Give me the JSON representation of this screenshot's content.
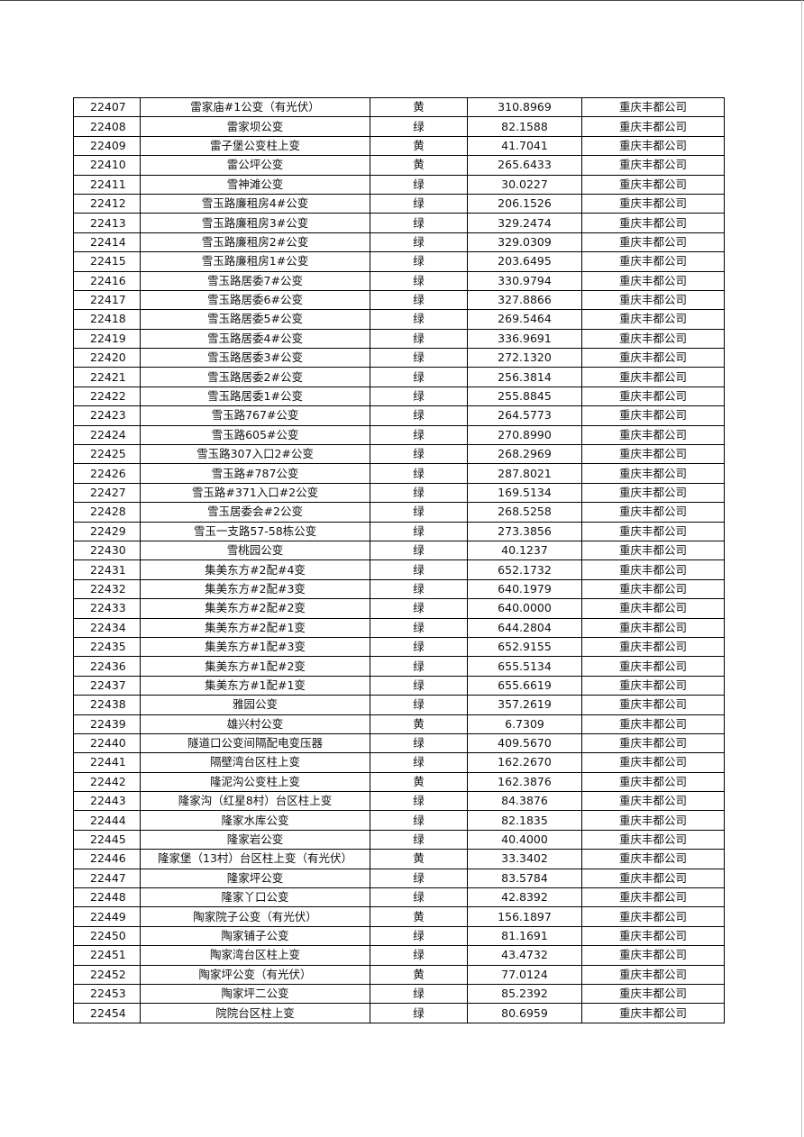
{
  "table": {
    "rows": [
      [
        "22407",
        "雷家庙#1公变（有光伏）",
        "黄",
        "310.8969",
        "重庆丰都公司"
      ],
      [
        "22408",
        "雷家坝公变",
        "绿",
        "82.1588",
        "重庆丰都公司"
      ],
      [
        "22409",
        "雷子堡公变柱上变",
        "黄",
        "41.7041",
        "重庆丰都公司"
      ],
      [
        "22410",
        "雷公坪公变",
        "黄",
        "265.6433",
        "重庆丰都公司"
      ],
      [
        "22411",
        "雪神滩公变",
        "绿",
        "30.0227",
        "重庆丰都公司"
      ],
      [
        "22412",
        "雪玉路廉租房4#公变",
        "绿",
        "206.1526",
        "重庆丰都公司"
      ],
      [
        "22413",
        "雪玉路廉租房3#公变",
        "绿",
        "329.2474",
        "重庆丰都公司"
      ],
      [
        "22414",
        "雪玉路廉租房2#公变",
        "绿",
        "329.0309",
        "重庆丰都公司"
      ],
      [
        "22415",
        "雪玉路廉租房1#公变",
        "绿",
        "203.6495",
        "重庆丰都公司"
      ],
      [
        "22416",
        "雪玉路居委7#公变",
        "绿",
        "330.9794",
        "重庆丰都公司"
      ],
      [
        "22417",
        "雪玉路居委6#公变",
        "绿",
        "327.8866",
        "重庆丰都公司"
      ],
      [
        "22418",
        "雪玉路居委5#公变",
        "绿",
        "269.5464",
        "重庆丰都公司"
      ],
      [
        "22419",
        "雪玉路居委4#公变",
        "绿",
        "336.9691",
        "重庆丰都公司"
      ],
      [
        "22420",
        "雪玉路居委3#公变",
        "绿",
        "272.1320",
        "重庆丰都公司"
      ],
      [
        "22421",
        "雪玉路居委2#公变",
        "绿",
        "256.3814",
        "重庆丰都公司"
      ],
      [
        "22422",
        "雪玉路居委1#公变",
        "绿",
        "255.8845",
        "重庆丰都公司"
      ],
      [
        "22423",
        "雪玉路767#公变",
        "绿",
        "264.5773",
        "重庆丰都公司"
      ],
      [
        "22424",
        "雪玉路605#公变",
        "绿",
        "270.8990",
        "重庆丰都公司"
      ],
      [
        "22425",
        "雪玉路307入口2#公变",
        "绿",
        "268.2969",
        "重庆丰都公司"
      ],
      [
        "22426",
        "雪玉路#787公变",
        "绿",
        "287.8021",
        "重庆丰都公司"
      ],
      [
        "22427",
        "雪玉路#371入口#2公变",
        "绿",
        "169.5134",
        "重庆丰都公司"
      ],
      [
        "22428",
        "雪玉居委会#2公变",
        "绿",
        "268.5258",
        "重庆丰都公司"
      ],
      [
        "22429",
        "雪玉一支路57-58栋公变",
        "绿",
        "273.3856",
        "重庆丰都公司"
      ],
      [
        "22430",
        "雪桃园公变",
        "绿",
        "40.1237",
        "重庆丰都公司"
      ],
      [
        "22431",
        "集美东方#2配#4变",
        "绿",
        "652.1732",
        "重庆丰都公司"
      ],
      [
        "22432",
        "集美东方#2配#3变",
        "绿",
        "640.1979",
        "重庆丰都公司"
      ],
      [
        "22433",
        "集美东方#2配#2变",
        "绿",
        "640.0000",
        "重庆丰都公司"
      ],
      [
        "22434",
        "集美东方#2配#1变",
        "绿",
        "644.2804",
        "重庆丰都公司"
      ],
      [
        "22435",
        "集美东方#1配#3变",
        "绿",
        "652.9155",
        "重庆丰都公司"
      ],
      [
        "22436",
        "集美东方#1配#2变",
        "绿",
        "655.5134",
        "重庆丰都公司"
      ],
      [
        "22437",
        "集美东方#1配#1变",
        "绿",
        "655.6619",
        "重庆丰都公司"
      ],
      [
        "22438",
        "雅园公变",
        "绿",
        "357.2619",
        "重庆丰都公司"
      ],
      [
        "22439",
        "雄兴村公变",
        "黄",
        "6.7309",
        "重庆丰都公司"
      ],
      [
        "22440",
        "隧道口公变间隔配电变压器",
        "绿",
        "409.5670",
        "重庆丰都公司"
      ],
      [
        "22441",
        "隔壁湾台区柱上变",
        "绿",
        "162.2670",
        "重庆丰都公司"
      ],
      [
        "22442",
        "隆泥沟公变柱上变",
        "黄",
        "162.3876",
        "重庆丰都公司"
      ],
      [
        "22443",
        "隆家沟（红星8村）台区柱上变",
        "绿",
        "84.3876",
        "重庆丰都公司"
      ],
      [
        "22444",
        "隆家水库公变",
        "绿",
        "82.1835",
        "重庆丰都公司"
      ],
      [
        "22445",
        "隆家岩公变",
        "绿",
        "40.4000",
        "重庆丰都公司"
      ],
      [
        "22446",
        "隆家堡（13村）台区柱上变（有光伏）",
        "黄",
        "33.3402",
        "重庆丰都公司"
      ],
      [
        "22447",
        "隆家坪公变",
        "绿",
        "83.5784",
        "重庆丰都公司"
      ],
      [
        "22448",
        "隆家丫口公变",
        "绿",
        "42.8392",
        "重庆丰都公司"
      ],
      [
        "22449",
        "陶家院子公变（有光伏）",
        "黄",
        "156.1897",
        "重庆丰都公司"
      ],
      [
        "22450",
        "陶家铺子公变",
        "绿",
        "81.1691",
        "重庆丰都公司"
      ],
      [
        "22451",
        "陶家湾台区柱上变",
        "绿",
        "43.4732",
        "重庆丰都公司"
      ],
      [
        "22452",
        "陶家坪公变（有光伏）",
        "黄",
        "77.0124",
        "重庆丰都公司"
      ],
      [
        "22453",
        "陶家坪二公变",
        "绿",
        "85.2392",
        "重庆丰都公司"
      ],
      [
        "22454",
        "院院台区柱上变",
        "绿",
        "80.6959",
        "重庆丰都公司"
      ]
    ]
  }
}
